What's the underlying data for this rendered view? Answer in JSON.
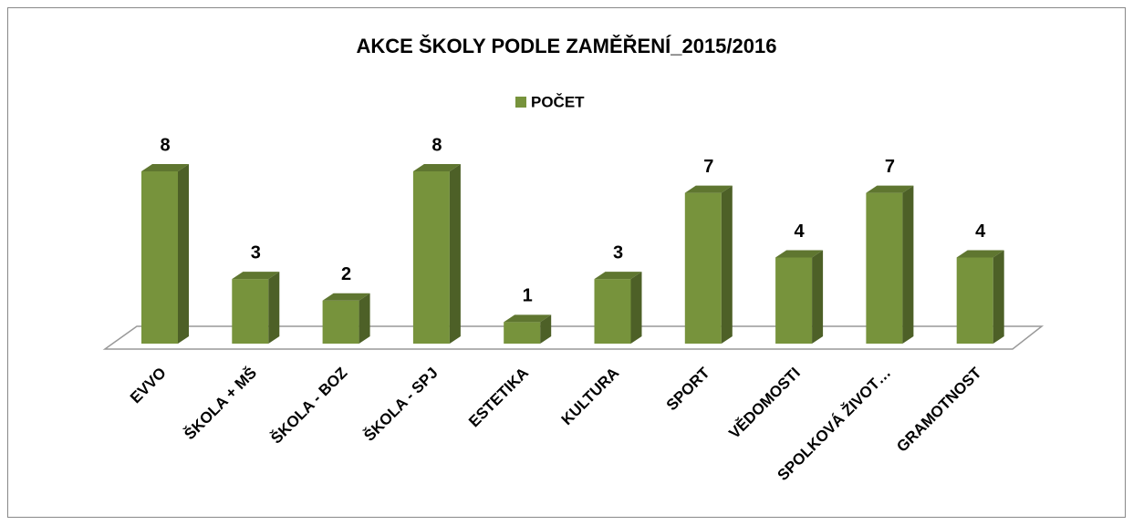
{
  "chart_data": {
    "type": "bar3d",
    "title": "AKCE ŠKOLY PODLE ZAMĚŘENÍ_2015/2016",
    "categories": [
      "EVVO",
      "ŠKOLA + MŠ",
      "ŠKOLA - BOZ",
      "ŠKOLA - SPJ",
      "ESTETIKA",
      "KULTURA",
      "SPORT",
      "VĚDOMOSTI",
      "SPOLKOVÁ ŽIVOT…",
      "GRAMOTNOST"
    ],
    "series": [
      {
        "name": "POČET",
        "color": "#77933c",
        "values": [
          8,
          3,
          2,
          8,
          1,
          3,
          7,
          4,
          7,
          4
        ]
      }
    ],
    "legend": "top"
  }
}
